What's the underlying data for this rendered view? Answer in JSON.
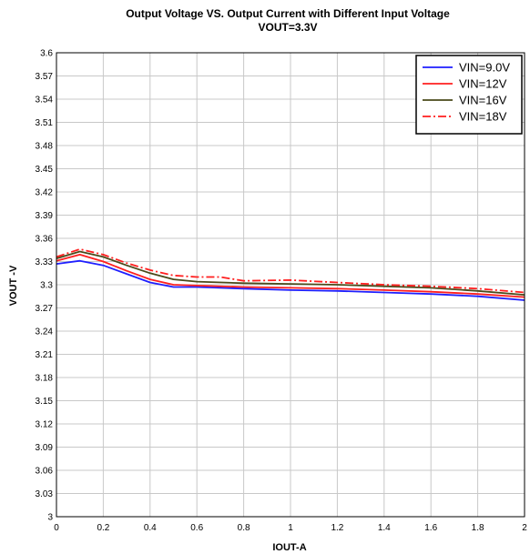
{
  "chart_data": {
    "type": "line",
    "title": "Output Voltage VS. Output Current with Different Input Voltage",
    "subtitle": "VOUT=3.3V",
    "xlabel": "IOUT-A",
    "ylabel": "VOUT -V",
    "xlim": [
      0,
      2
    ],
    "ylim": [
      3.0,
      3.6
    ],
    "xticks": [
      "0",
      "0.2",
      "0.4",
      "0.6",
      "0.8",
      "1",
      "1.2",
      "1.4",
      "1.6",
      "1.8",
      "2"
    ],
    "yticks": [
      "3",
      "3.03",
      "3.06",
      "3.09",
      "3.12",
      "3.15",
      "3.18",
      "3.21",
      "3.24",
      "3.27",
      "3.3",
      "3.33",
      "3.36",
      "3.39",
      "3.42",
      "3.45",
      "3.48",
      "3.51",
      "3.54",
      "3.57",
      "3.6"
    ],
    "grid": true,
    "legend_position": "top-right",
    "series": [
      {
        "name": "VIN=9.0V",
        "color": "#1f1fff",
        "dash": "solid",
        "x": [
          0,
          0.1,
          0.2,
          0.3,
          0.4,
          0.5,
          0.6,
          0.8,
          1.0,
          1.2,
          1.4,
          1.6,
          1.8,
          2.0
        ],
        "y": [
          3.327,
          3.331,
          3.325,
          3.314,
          3.303,
          3.297,
          3.297,
          3.295,
          3.293,
          3.292,
          3.29,
          3.288,
          3.285,
          3.28
        ]
      },
      {
        "name": "VIN=12V",
        "color": "#ff1f1f",
        "dash": "solid",
        "x": [
          0,
          0.1,
          0.2,
          0.3,
          0.4,
          0.5,
          0.6,
          0.8,
          1.0,
          1.2,
          1.4,
          1.6,
          1.8,
          2.0
        ],
        "y": [
          3.331,
          3.339,
          3.33,
          3.318,
          3.307,
          3.3,
          3.299,
          3.297,
          3.296,
          3.295,
          3.293,
          3.291,
          3.288,
          3.284
        ]
      },
      {
        "name": "VIN=16V",
        "color": "#4a4a1a",
        "dash": "solid",
        "x": [
          0,
          0.1,
          0.2,
          0.3,
          0.4,
          0.5,
          0.6,
          0.8,
          1.0,
          1.2,
          1.4,
          1.6,
          1.8,
          2.0
        ],
        "y": [
          3.334,
          3.343,
          3.336,
          3.325,
          3.315,
          3.307,
          3.304,
          3.302,
          3.301,
          3.3,
          3.298,
          3.296,
          3.292,
          3.287
        ]
      },
      {
        "name": "VIN=18V",
        "color": "#ff1f1f",
        "dash": "dashdot",
        "x": [
          0,
          0.1,
          0.2,
          0.3,
          0.4,
          0.5,
          0.6,
          0.7,
          0.8,
          1.0,
          1.2,
          1.4,
          1.6,
          1.8,
          2.0
        ],
        "y": [
          3.336,
          3.346,
          3.339,
          3.328,
          3.319,
          3.312,
          3.31,
          3.31,
          3.305,
          3.306,
          3.303,
          3.3,
          3.298,
          3.295,
          3.29
        ]
      }
    ]
  }
}
